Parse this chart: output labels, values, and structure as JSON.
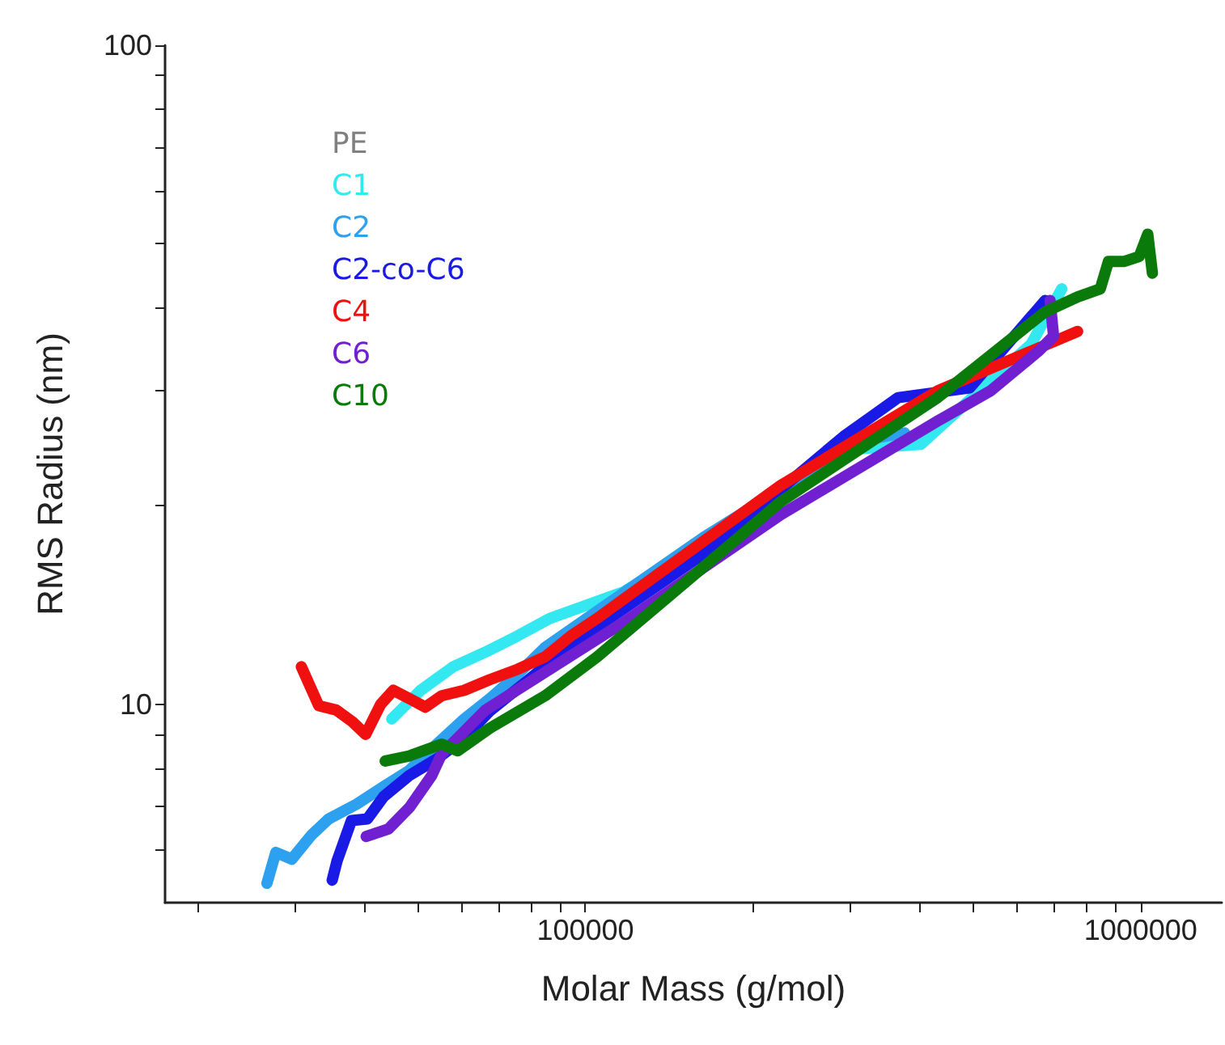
{
  "chart_data": {
    "type": "line",
    "xlabel": "Molar Mass (g/mol)",
    "ylabel": "RMS Radius (nm)",
    "log": "xy",
    "grid": false,
    "legend": "top left",
    "marker": "none",
    "line_style": "solid",
    "xlim": [
      17500,
      1400000
    ],
    "ylim": [
      5,
      100
    ],
    "xticks": [
      {
        "value": 20000,
        "label": null
      },
      {
        "value": 30000,
        "label": null
      },
      {
        "value": 40000,
        "label": null
      },
      {
        "value": 50000,
        "label": null
      },
      {
        "value": 60000,
        "label": null
      },
      {
        "value": 70000,
        "label": null
      },
      {
        "value": 80000,
        "label": null
      },
      {
        "value": 90000,
        "label": null
      },
      100000,
      {
        "value": 200000,
        "label": null
      },
      {
        "value": 300000,
        "label": null
      },
      {
        "value": 400000,
        "label": null
      },
      {
        "value": 500000,
        "label": null
      },
      {
        "value": 600000,
        "label": null
      },
      {
        "value": 700000,
        "label": null
      },
      {
        "value": 800000,
        "label": null
      },
      {
        "value": 900000,
        "label": null
      },
      1000000
    ],
    "yticks": [
      {
        "value": 6,
        "label": null
      },
      {
        "value": 7,
        "label": null
      },
      {
        "value": 8,
        "label": null
      },
      {
        "value": 9,
        "label": null
      },
      10,
      {
        "value": 20,
        "label": null
      },
      {
        "value": 30,
        "label": null
      },
      {
        "value": 40,
        "label": null
      },
      {
        "value": 50,
        "label": null
      },
      {
        "value": 60,
        "label": null
      },
      {
        "value": 70,
        "label": null
      },
      {
        "value": 80,
        "label": null
      },
      {
        "value": 90,
        "label": null
      },
      100
    ],
    "series": [
      {
        "name": "PE",
        "color": "#808080"
      },
      {
        "name": "C1",
        "color": "#33e8f0",
        "x": [
          44800,
          50500,
          57800,
          66100,
          75500,
          86300,
          117000,
          225000,
          310000,
          402000,
          635000,
          721000
        ],
        "values": [
          9.5,
          10.5,
          11.4,
          12.0,
          12.7,
          13.5,
          14.8,
          20.5,
          24.4,
          24.8,
          35.2,
          42.7
        ]
      },
      {
        "name": "C2",
        "color": "#2ea0f0",
        "x": [
          26700,
          27700,
          29600,
          32100,
          34500,
          38700,
          43300,
          48200,
          54000,
          60500,
          67300,
          75500,
          84600,
          163000,
          310000,
          376000
        ],
        "values": [
          5.35,
          5.96,
          5.82,
          6.33,
          6.7,
          7.05,
          7.5,
          7.94,
          8.7,
          9.5,
          10.2,
          11.1,
          12.2,
          17.9,
          25.1,
          25.8
        ]
      },
      {
        "name": "C2-co-C6",
        "color": "#1a1ae6",
        "x": [
          35000,
          35700,
          37900,
          40500,
          43300,
          48200,
          54000,
          60500,
          67300,
          79100,
          94200,
          163000,
          292000,
          366000,
          492000,
          673000
        ],
        "values": [
          5.41,
          5.78,
          6.66,
          6.7,
          7.24,
          7.8,
          8.26,
          8.89,
          9.77,
          10.9,
          12.3,
          16.9,
          25.5,
          29.2,
          30.2,
          41.0
        ]
      },
      {
        "name": "C4",
        "color": "#f01010",
        "x": [
          30800,
          33100,
          35600,
          38100,
          40200,
          42800,
          45100,
          48200,
          51500,
          55100,
          60500,
          67300,
          75500,
          84600,
          94200,
          105000,
          225000,
          431000,
          770000
        ],
        "values": [
          11.4,
          9.95,
          9.8,
          9.4,
          9.0,
          10.0,
          10.5,
          10.2,
          9.9,
          10.3,
          10.5,
          10.9,
          11.3,
          11.8,
          12.7,
          13.5,
          21.5,
          29.9,
          36.8
        ]
      },
      {
        "name": "C6",
        "color": "#7020d0",
        "x": [
          40300,
          44200,
          48200,
          52900,
          55100,
          66100,
          117000,
          225000,
          431000,
          537000,
          656000,
          697000,
          687000
        ],
        "values": [
          6.3,
          6.47,
          6.97,
          7.8,
          8.4,
          9.8,
          13.3,
          19.4,
          26.9,
          29.9,
          34.4,
          36.2,
          41.0
        ]
      },
      {
        "name": "C10",
        "color": "#0a7a0a",
        "x": [
          43600,
          48200,
          55100,
          58900,
          67300,
          84600,
          105000,
          225000,
          431000,
          673000,
          770000,
          846000,
          875000,
          935000,
          994000,
          1030000,
          1050000
        ],
        "values": [
          8.2,
          8.35,
          8.7,
          8.5,
          9.2,
          10.3,
          11.8,
          20.3,
          29.2,
          39.4,
          41.5,
          42.7,
          47.0,
          47.0,
          47.8,
          51.7,
          45.1
        ]
      }
    ]
  }
}
